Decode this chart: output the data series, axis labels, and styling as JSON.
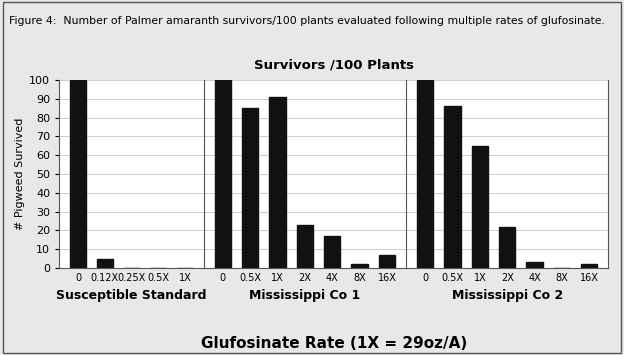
{
  "figure_title": "Figure 4:  Number of Palmer amaranth survivors/100 plants evaluated following multiple rates of glufosinate.",
  "chart_title": "Survivors /100 Plants",
  "xlabel": "Glufosinate Rate (1X = 29oz/A)",
  "ylabel": "# Pigweed Survived",
  "ylim": [
    0,
    100
  ],
  "yticks": [
    0,
    10,
    20,
    30,
    40,
    50,
    60,
    70,
    80,
    90,
    100
  ],
  "groups": [
    {
      "name": "Susceptible Standard",
      "labels": [
        "0",
        "0.12X",
        "0.25X",
        "0.5X",
        "1X"
      ],
      "values": [
        100,
        5,
        0,
        0,
        0
      ]
    },
    {
      "name": "Mississippi Co 1",
      "labels": [
        "0",
        "0.5X",
        "1X",
        "2X",
        "4X",
        "8X",
        "16X"
      ],
      "values": [
        100,
        85,
        91,
        23,
        17,
        2,
        7
      ]
    },
    {
      "name": "Mississippi Co 2",
      "labels": [
        "0",
        "0.5X",
        "1X",
        "2X",
        "4X",
        "8X",
        "16X"
      ],
      "values": [
        100,
        86,
        65,
        22,
        3,
        0,
        2
      ]
    }
  ],
  "bar_color": "#111111",
  "bar_width": 0.6,
  "background_color": "#e8e8e8",
  "plot_bg_color": "#ffffff",
  "border_color": "#555555",
  "grid_color": "#bbbbbb",
  "divider_color": "#555555",
  "figure_title_fontsize": 7.8,
  "chart_title_fontsize": 9.5,
  "xlabel_fontsize": 11,
  "ylabel_fontsize": 8,
  "xtick_fontsize": 7,
  "ytick_fontsize": 8,
  "group_label_fontsize": 9
}
